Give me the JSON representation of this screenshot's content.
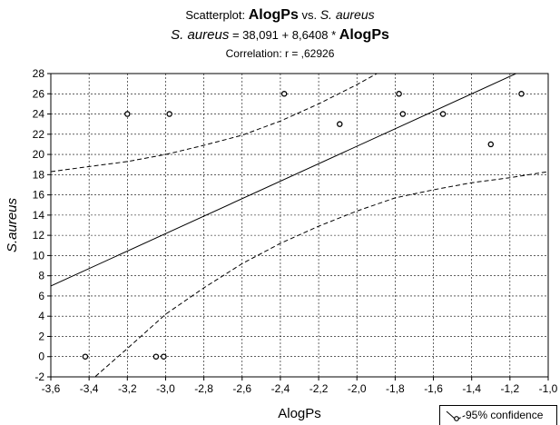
{
  "chart_data": {
    "type": "scatter",
    "title": {
      "line1_prefix": "Scatterplot: ",
      "line1_var_x": "AlogPs",
      "line1_mid": " vs. ",
      "line1_var_y": "S. aureus",
      "line2_var_y": "S. aureus",
      "line2_equation": " = 38,091 + 8,6408 * ",
      "line2_var_x": "AlogPs",
      "line3": "Correlation: r = ,62926"
    },
    "xlabel": "AlogPs",
    "ylabel": "S.aureus",
    "xlim": [
      -3.6,
      -1.0
    ],
    "ylim": [
      -2,
      28
    ],
    "x_ticks": [
      -3.6,
      -3.4,
      -3.2,
      -3.0,
      -2.8,
      -2.6,
      -2.4,
      -2.2,
      -2.0,
      -1.8,
      -1.6,
      -1.4,
      -1.2,
      -1.0
    ],
    "x_tick_labels": [
      "-3,6",
      "-3,4",
      "-3,2",
      "-3,0",
      "-2,8",
      "-2,6",
      "-2,4",
      "-2,2",
      "-2,0",
      "-1,8",
      "-1,6",
      "-1,4",
      "-1,2",
      "-1,0"
    ],
    "y_ticks": [
      -2,
      0,
      2,
      4,
      6,
      8,
      10,
      12,
      14,
      16,
      18,
      20,
      22,
      24,
      26,
      28
    ],
    "y_tick_labels": [
      "-2",
      "0",
      "2",
      "4",
      "6",
      "8",
      "10",
      "12",
      "14",
      "16",
      "18",
      "20",
      "22",
      "24",
      "26",
      "28"
    ],
    "grid": true,
    "points": [
      {
        "x": -3.42,
        "y": 0
      },
      {
        "x": -3.2,
        "y": 24
      },
      {
        "x": -3.05,
        "y": 0
      },
      {
        "x": -3.01,
        "y": 0
      },
      {
        "x": -2.98,
        "y": 24
      },
      {
        "x": -2.38,
        "y": 26
      },
      {
        "x": -2.09,
        "y": 23
      },
      {
        "x": -1.78,
        "y": 26
      },
      {
        "x": -1.76,
        "y": 24
      },
      {
        "x": -1.55,
        "y": 24
      },
      {
        "x": -1.3,
        "y": 21
      },
      {
        "x": -1.14,
        "y": 26
      }
    ],
    "regression": {
      "intercept": 38.091,
      "slope": 8.6408
    },
    "confidence_band": {
      "x": [
        -3.6,
        -3.4,
        -3.2,
        -3.0,
        -2.8,
        -2.6,
        -2.4,
        -2.2,
        -2.0,
        -1.8,
        -1.6,
        -1.4,
        -1.2,
        -1.0
      ],
      "upper": [
        18.3,
        18.8,
        19.3,
        20.0,
        20.9,
        21.9,
        23.3,
        25.0,
        26.9,
        29.0,
        31.4,
        33.9,
        36.3,
        38.8
      ],
      "lower": [
        -4.3,
        -2.5,
        0.8,
        4.2,
        6.8,
        9.2,
        11.2,
        12.9,
        14.4,
        15.7,
        16.5,
        17.2,
        17.7,
        18.3
      ]
    },
    "legend": {
      "label": "95% confidence",
      "position": "bottom-right"
    }
  }
}
